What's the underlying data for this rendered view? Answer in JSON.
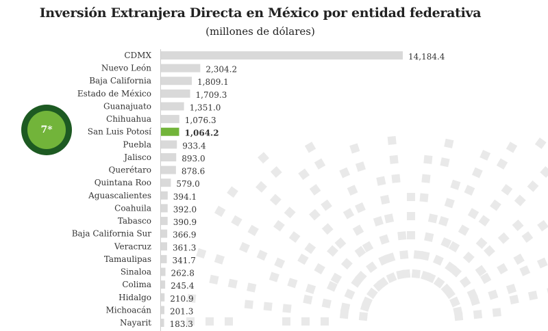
{
  "chart_data": {
    "type": "bar",
    "orientation": "horizontal",
    "title": "Inversión Extranjera Directa en México por entidad federativa",
    "subtitle": "(millones de dólares)",
    "categories": [
      "CDMX",
      "Nuevo León",
      "Baja California",
      "Estado de México",
      "Guanajuato",
      "Chihuahua",
      "San Luis Potosí",
      "Puebla",
      "Jalisco",
      "Querétaro",
      "Quintana Roo",
      "Aguascalientes",
      "Coahuila",
      "Tabasco",
      "Baja California Sur",
      "Veracruz",
      "Tamaulipas",
      "Sinaloa",
      "Colima",
      "Hidalgo",
      "Michoacán",
      "Nayarit"
    ],
    "values": [
      14184.4,
      2304.2,
      1809.1,
      1709.3,
      1351.0,
      1076.3,
      1064.2,
      933.4,
      893.0,
      878.6,
      579.0,
      394.1,
      392.0,
      390.9,
      366.9,
      361.3,
      341.7,
      262.8,
      245.4,
      210.9,
      201.3,
      183.3
    ],
    "data_labels": [
      "14,184.4",
      "2,304.2",
      "1,809.1",
      "1,709.3",
      "1,351.0",
      "1,076.3",
      "1,064.2",
      "933.4",
      "893.0",
      "878.6",
      "579.0",
      "394.1",
      "392.0",
      "390.9",
      "366.9",
      "361.3",
      "341.7",
      "262.8",
      "245.4",
      "210.9",
      "201.3",
      "183.3"
    ],
    "highlight": "San Luis Potosí",
    "colors": {
      "bar": "#d9d9d9",
      "highlight": "#72b43a",
      "badge_outer": "#1d5a22",
      "badge_inner": "#72b43a"
    },
    "grid": false
  },
  "badge": {
    "rank": "7*"
  }
}
